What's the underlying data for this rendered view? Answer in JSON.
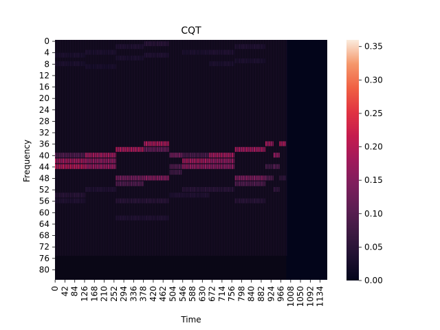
{
  "chart_data": {
    "type": "heatmap",
    "title": "CQT",
    "xlabel": "Time",
    "ylabel": "Frequency",
    "x_ticks": [
      0,
      42,
      84,
      126,
      168,
      210,
      252,
      294,
      336,
      378,
      420,
      462,
      504,
      546,
      588,
      630,
      672,
      714,
      756,
      798,
      840,
      882,
      924,
      966,
      1008,
      1050,
      1092,
      1134
    ],
    "y_ticks": [
      0,
      4,
      8,
      12,
      16,
      20,
      24,
      28,
      32,
      36,
      40,
      44,
      48,
      52,
      56,
      60,
      64,
      68,
      72,
      76,
      80
    ],
    "xlim": [
      0,
      1165
    ],
    "ylim": [
      0,
      84
    ],
    "colorbar": {
      "ticks": [
        "0.00",
        "0.05",
        "0.10",
        "0.15",
        "0.20",
        "0.25",
        "0.30",
        "0.35"
      ],
      "range": [
        0,
        0.36
      ],
      "colormap": "rocket"
    },
    "silence_start": 990,
    "segments": [
      {
        "t0": 0,
        "t1": 130,
        "bins": [
          {
            "f": 42,
            "v": 0.19
          },
          {
            "f": 44,
            "v": 0.21
          },
          {
            "f": 40,
            "v": 0.1
          },
          {
            "f": 54,
            "v": 0.05
          },
          {
            "f": 56,
            "v": 0.04
          },
          {
            "f": 5,
            "v": 0.035
          },
          {
            "f": 8,
            "v": 0.035
          }
        ]
      },
      {
        "t0": 130,
        "t1": 260,
        "bins": [
          {
            "f": 40,
            "v": 0.19
          },
          {
            "f": 42,
            "v": 0.17
          },
          {
            "f": 44,
            "v": 0.18
          },
          {
            "f": 52,
            "v": 0.04
          },
          {
            "f": 4,
            "v": 0.035
          },
          {
            "f": 9,
            "v": 0.03
          }
        ]
      },
      {
        "t0": 260,
        "t1": 380,
        "bins": [
          {
            "f": 38,
            "v": 0.2
          },
          {
            "f": 48,
            "v": 0.14
          },
          {
            "f": 50,
            "v": 0.1
          },
          {
            "f": 56,
            "v": 0.05
          },
          {
            "f": 62,
            "v": 0.04
          },
          {
            "f": 2,
            "v": 0.04
          },
          {
            "f": 6,
            "v": 0.035
          }
        ]
      },
      {
        "t0": 380,
        "t1": 490,
        "bins": [
          {
            "f": 36,
            "v": 0.2
          },
          {
            "f": 38,
            "v": 0.12
          },
          {
            "f": 48,
            "v": 0.16
          },
          {
            "f": 56,
            "v": 0.05
          },
          {
            "f": 62,
            "v": 0.04
          },
          {
            "f": 1,
            "v": 0.05
          },
          {
            "f": 5,
            "v": 0.04
          }
        ]
      },
      {
        "t0": 490,
        "t1": 545,
        "bins": [
          {
            "f": 40,
            "v": 0.14
          },
          {
            "f": 44,
            "v": 0.1
          },
          {
            "f": 46,
            "v": 0.08
          },
          {
            "f": 54,
            "v": 0.04
          }
        ]
      },
      {
        "t0": 545,
        "t1": 660,
        "bins": [
          {
            "f": 42,
            "v": 0.19
          },
          {
            "f": 44,
            "v": 0.17
          },
          {
            "f": 40,
            "v": 0.09
          },
          {
            "f": 52,
            "v": 0.05
          },
          {
            "f": 54,
            "v": 0.04
          },
          {
            "f": 4,
            "v": 0.035
          }
        ]
      },
      {
        "t0": 660,
        "t1": 770,
        "bins": [
          {
            "f": 40,
            "v": 0.19
          },
          {
            "f": 42,
            "v": 0.17
          },
          {
            "f": 44,
            "v": 0.16
          },
          {
            "f": 52,
            "v": 0.05
          },
          {
            "f": 4,
            "v": 0.04
          },
          {
            "f": 8,
            "v": 0.035
          }
        ]
      },
      {
        "t0": 770,
        "t1": 900,
        "bins": [
          {
            "f": 38,
            "v": 0.19
          },
          {
            "f": 48,
            "v": 0.15
          },
          {
            "f": 50,
            "v": 0.1
          },
          {
            "f": 56,
            "v": 0.05
          },
          {
            "f": 2,
            "v": 0.04
          },
          {
            "f": 7,
            "v": 0.035
          }
        ]
      },
      {
        "t0": 900,
        "t1": 935,
        "bins": [
          {
            "f": 36,
            "v": 0.19
          },
          {
            "f": 48,
            "v": 0.1
          },
          {
            "f": 44,
            "v": 0.08
          }
        ]
      },
      {
        "t0": 935,
        "t1": 960,
        "bins": [
          {
            "f": 40,
            "v": 0.17
          },
          {
            "f": 44,
            "v": 0.1
          },
          {
            "f": 52,
            "v": 0.06
          }
        ]
      },
      {
        "t0": 960,
        "t1": 990,
        "bins": [
          {
            "f": 36,
            "v": 0.2
          },
          {
            "f": 48,
            "v": 0.06
          }
        ]
      }
    ]
  }
}
